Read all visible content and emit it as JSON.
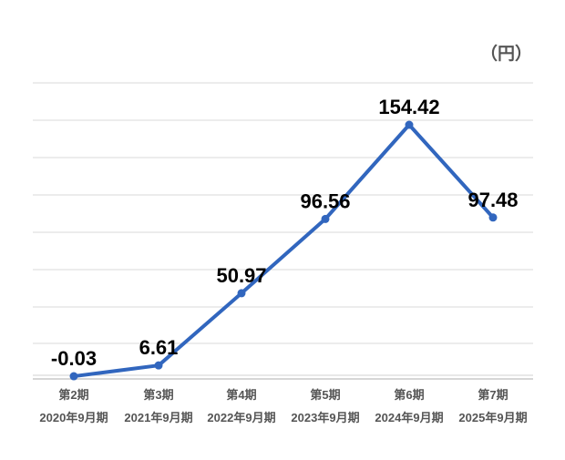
{
  "chart_data": {
    "type": "line",
    "title": "",
    "unit_label": "（円）",
    "categories": [
      "第2期",
      "第3期",
      "第4期",
      "第5期",
      "第6期",
      "第7期"
    ],
    "subcategories": [
      "2020年9月期",
      "2021年9月期",
      "2022年9月期",
      "2023年9月期",
      "2024年9月期",
      "2025年9月期"
    ],
    "series": [
      {
        "name": "",
        "values": [
          -0.03,
          6.61,
          50.97,
          96.56,
          154.42,
          97.48
        ],
        "labels": [
          "-0.03",
          "6.61",
          "50.97",
          "96.56",
          "154.42",
          "97.48"
        ],
        "color": "#3166be"
      }
    ],
    "ylim": [
      0,
      154.42
    ],
    "grid": true,
    "legend": "none"
  }
}
